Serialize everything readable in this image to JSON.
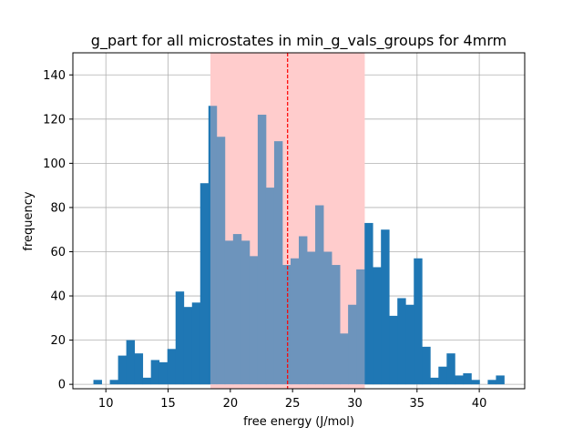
{
  "chart_data": {
    "type": "bar",
    "title": "g_part for all microstates in min_g_vals_groups for 4mrm",
    "xlabel": "free energy (J/mol)",
    "ylabel": "frequency",
    "xlim": [
      7.35,
      43.65
    ],
    "ylim": [
      -2,
      150
    ],
    "xticks": [
      10,
      15,
      20,
      25,
      30,
      35,
      40
    ],
    "yticks": [
      0,
      20,
      40,
      60,
      80,
      100,
      120,
      140
    ],
    "grid": true,
    "bar_color": "#1f77b4",
    "bin_start": 9.0,
    "bin_width": 0.66,
    "values": [
      2,
      0,
      2,
      13,
      20,
      14,
      3,
      11,
      10,
      16,
      42,
      35,
      37,
      91,
      126,
      112,
      65,
      68,
      65,
      58,
      122,
      89,
      110,
      54,
      57,
      67,
      60,
      81,
      60,
      54,
      23,
      36,
      52,
      73,
      53,
      70,
      31,
      39,
      36,
      57,
      17,
      3,
      8,
      14,
      4,
      5,
      2,
      0,
      2,
      4
    ],
    "shaded_region": {
      "x_start": 18.4,
      "x_end": 30.8,
      "color": "#ffcccc"
    },
    "vline": {
      "x": 24.6,
      "color": "#ff0000",
      "style": "dashed"
    }
  }
}
